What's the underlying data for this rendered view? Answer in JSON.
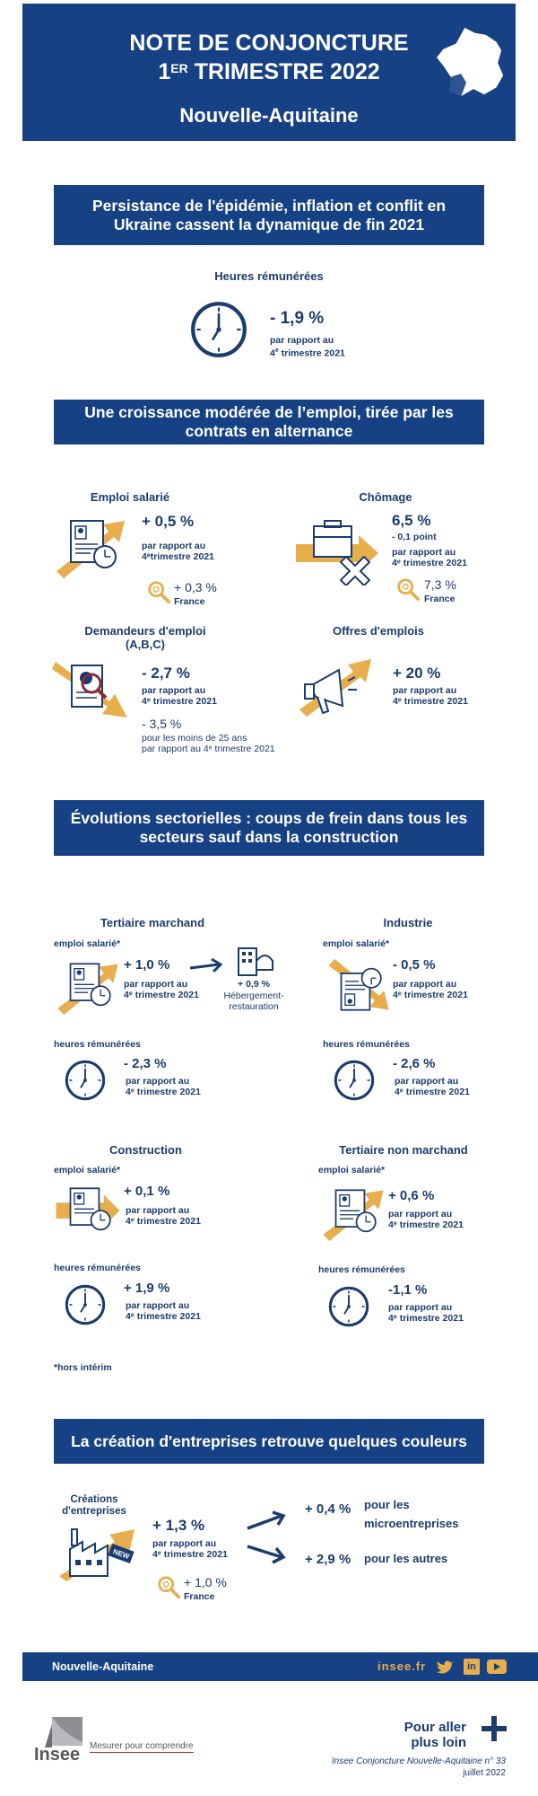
{
  "header": {
    "title_line1": "NOTE DE CONJONCTURE",
    "title_line2_num": "1",
    "title_line2_sup": "ER",
    "title_line2_rest": " TRIMESTRE 2022",
    "region": "Nouvelle-Aquitaine"
  },
  "section1": {
    "banner": "Persistance de l'épidémie, inflation et conflit en Ukraine cassent la dynamique de fin 2021",
    "heures_label": "Heures rémunérées",
    "heures_value": "- 1,9 %",
    "heures_sub1": "par rapport au",
    "heures_sub2_num": "4",
    "heures_sub2_sup": "e",
    "heures_sub2_rest": " trimestre 2021"
  },
  "section2": {
    "banner": "Une croissance modérée de l’emploi, tirée par les contrats en alternance",
    "emploi_label": "Emploi salarié",
    "emploi_value": "+ 0,5 %",
    "emploi_sub1": "par rapport au",
    "emploi_sub2": "4ᵉtrimestre 2021",
    "emploi_france_value": "+ 0,3 %",
    "emploi_france_label": "France",
    "chomage_label": "Chômage",
    "chomage_value": "6,5 %",
    "chomage_point": "- 0,1 point",
    "chomage_sub1": "par rapport au",
    "chomage_sub2": "4ᵉ trimestre 2021",
    "chomage_france_value": "7,3 %",
    "chomage_france_label": "France",
    "demandeurs_label1": "Demandeurs d'emploi",
    "demandeurs_label2": "(A,B,C)",
    "demandeurs_value": "- 2,7 %",
    "demandeurs_sub1": "par rapport au",
    "demandeurs_sub2": "4ᵉ trimestre 2021",
    "demandeurs_young_value": "- 3,5 %",
    "demandeurs_young_sub1": "pour les moins de 25 ans",
    "demandeurs_young_sub2": "par rapport au 4ᵉ trimestre 2021",
    "offres_label": "Offres d'emplois",
    "offres_value": "+ 20 %",
    "offres_sub1": "par rapport au",
    "offres_sub2": "4ᵉ trimestre 2021"
  },
  "section3": {
    "banner": "Évolutions sectorielles : coups de frein dans tous les secteurs sauf dans la construction",
    "emploi_tag": "emploi salarié*",
    "heures_tag": "heures rémunérées",
    "sub1": "par rapport au",
    "sub2": "4ᵉ trimestre 2021",
    "tertiaire": {
      "title": "Tertiaire marchand",
      "emploi": "+ 1,0 %",
      "heures": "- 2,3 %",
      "heb_value": "+ 0,9 %",
      "heb_label1": "Hébergement-",
      "heb_label2": "restauration"
    },
    "industrie": {
      "title": "Industrie",
      "emploi": "- 0,5 %",
      "heures": "- 2,6 %"
    },
    "construction": {
      "title": "Construction",
      "emploi": "+ 0,1 %",
      "heures": "+ 1,9 %"
    },
    "nonmarchand": {
      "title": "Tertiaire non marchand",
      "emploi": "+ 0,6 %",
      "heures": "-1,1 %"
    },
    "footnote": "*hors intérim"
  },
  "section4": {
    "banner": "La création d'entreprises retrouve quelques couleurs",
    "label1": "Créations",
    "label2": "d'entreprises",
    "value": "+ 1,3 %",
    "sub1": "par rapport au",
    "sub2": "4ᵉ trimestre 2021",
    "france_value": "+ 1,0 %",
    "france_label": "France",
    "micro_value": "+ 0,4 %",
    "micro_label1": "pour les",
    "micro_label2": "microentreprises",
    "autres_value": "+ 2,9 %",
    "autres_label": "pour les autres",
    "new_badge": "NEW"
  },
  "footer": {
    "region": "Nouvelle-Aquitaine",
    "site": "insee.fr",
    "linkedin": "in"
  },
  "bottom": {
    "logo_text": "Insee",
    "tagline": "Mesurer pour comprendre",
    "more1": "Pour aller",
    "more2": "plus loin",
    "pub1": "Insee Conjoncture Nouvelle-Aquitaine n° 33",
    "pub2": "juillet 2022"
  },
  "colors": {
    "navy": "#174185",
    "gold": "#e8ad4c"
  }
}
